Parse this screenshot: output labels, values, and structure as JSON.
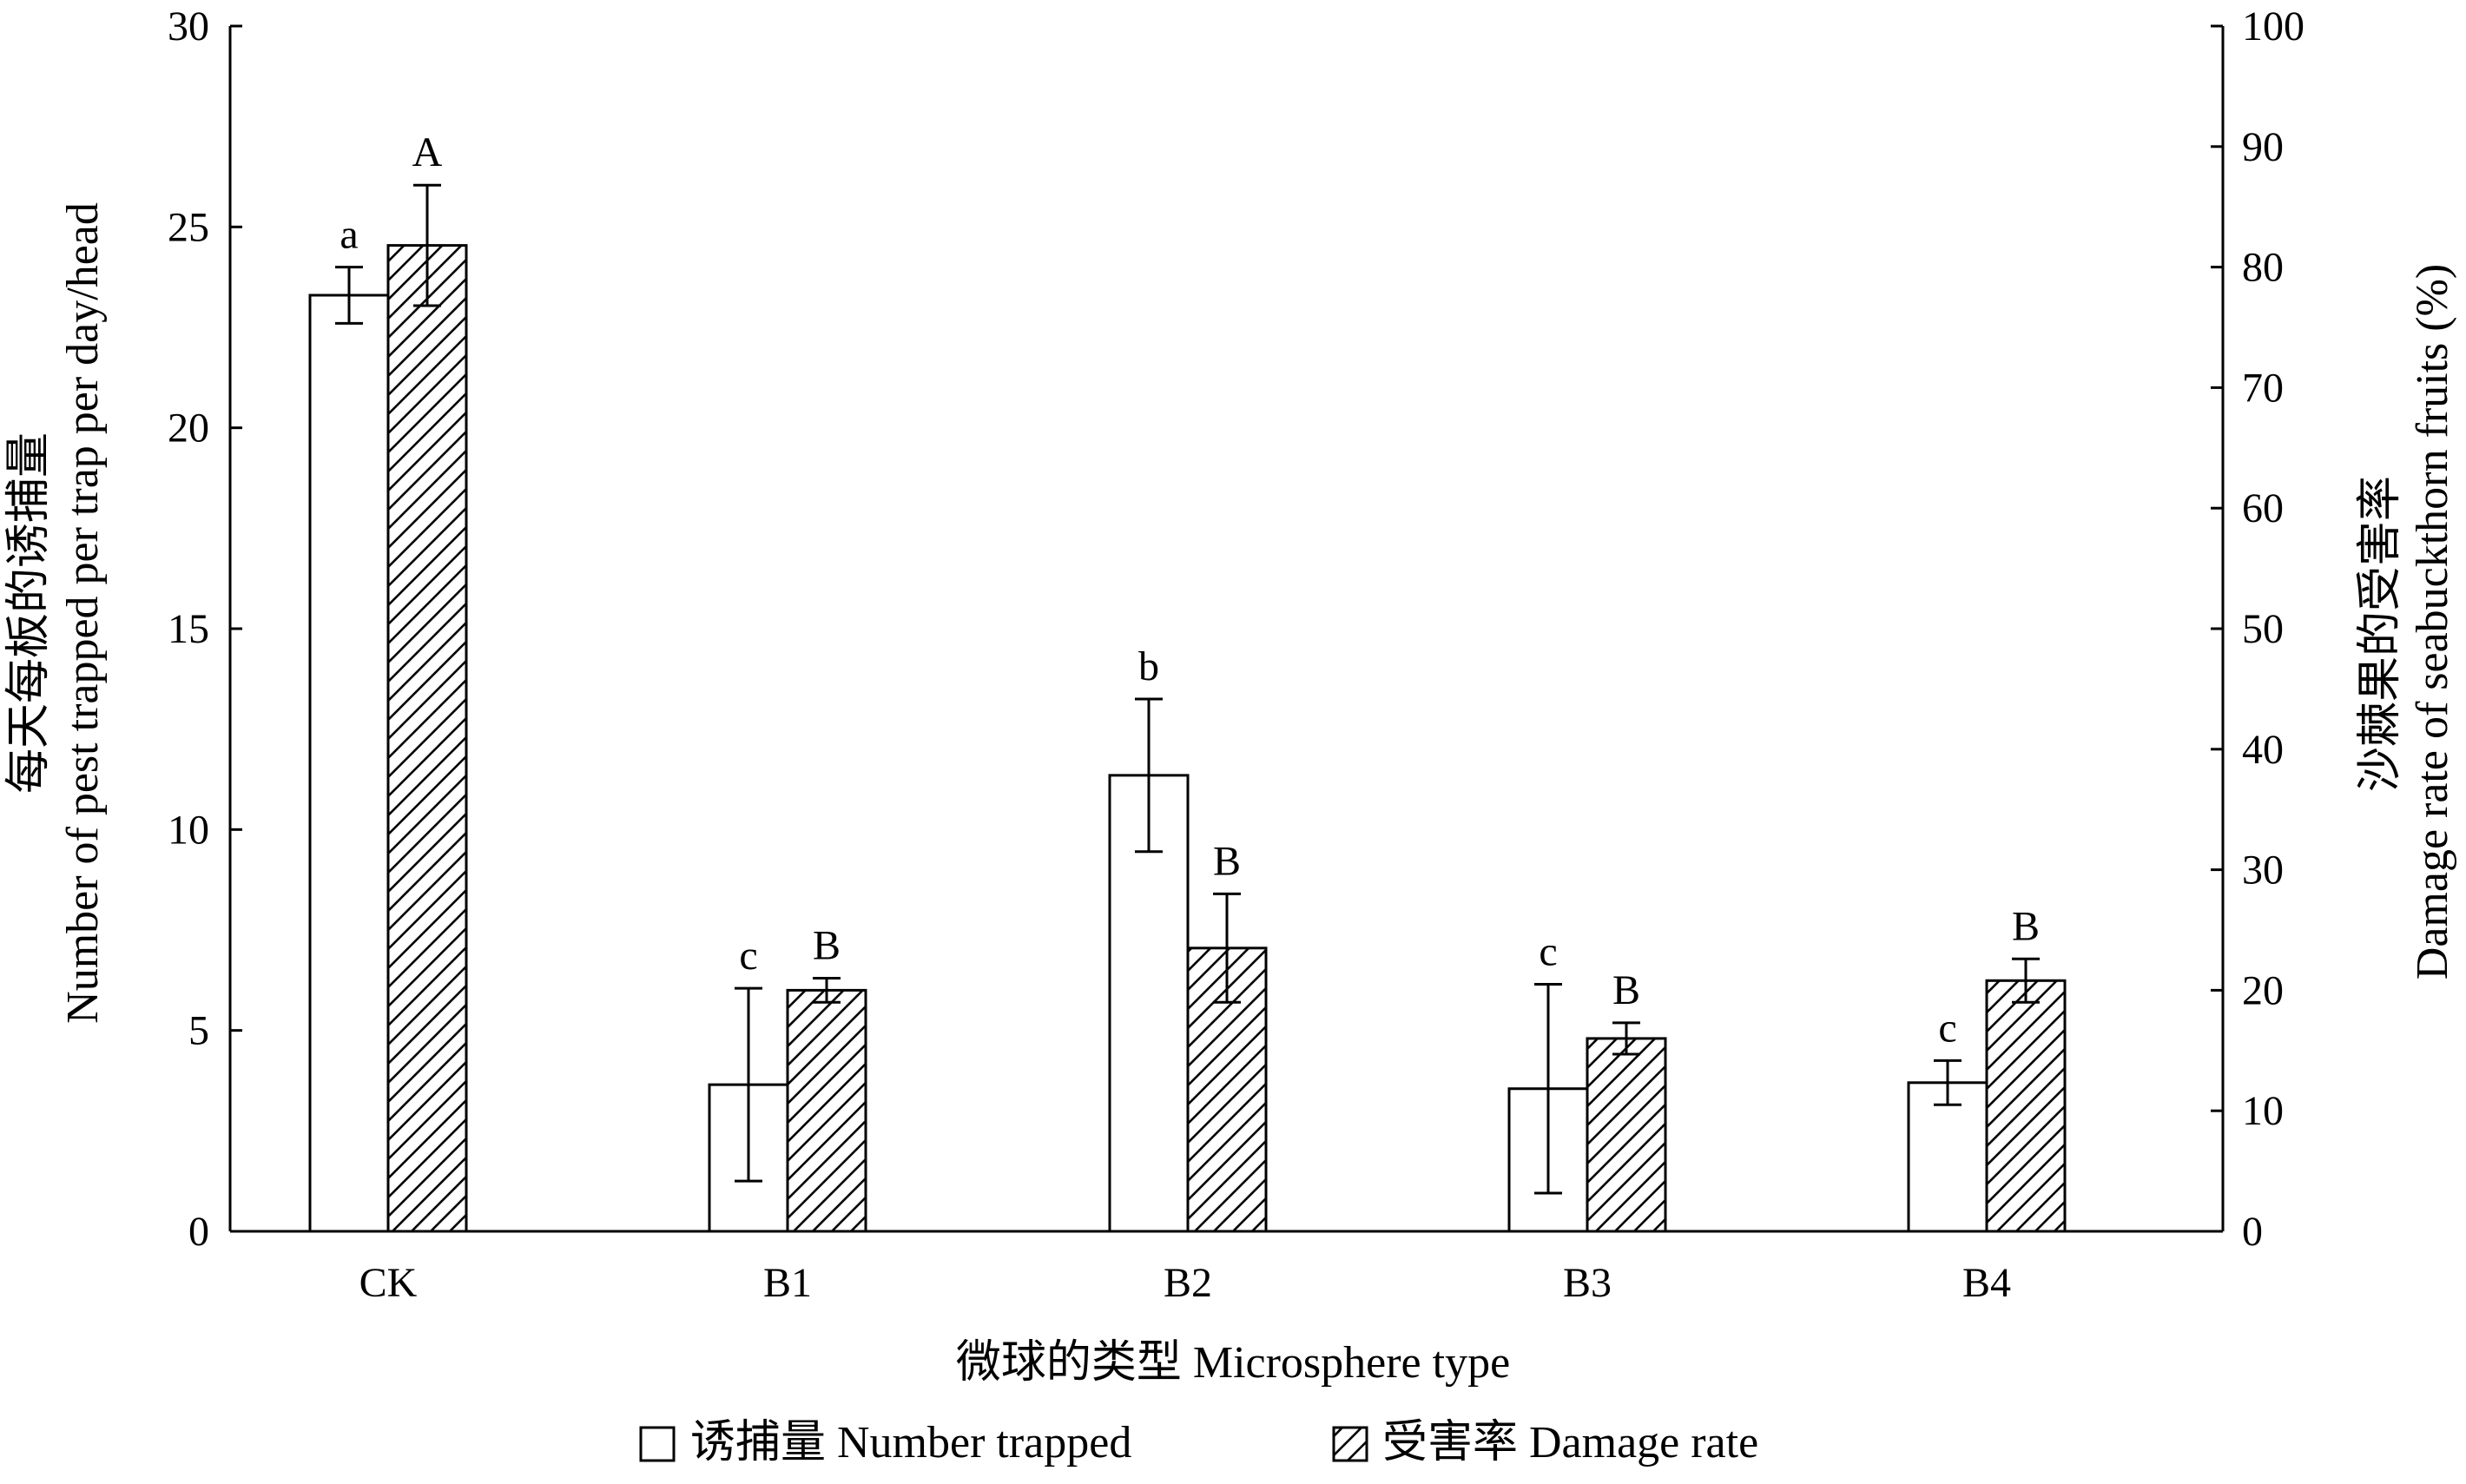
{
  "chart_data": {
    "type": "bar",
    "categories": [
      "CK",
      "B1",
      "B2",
      "B3",
      "B4"
    ],
    "xlabel": "微球的类型  Microsphere type",
    "ylabel_left": [
      "每天每板的诱捕量",
      "Number of pest trapped per trap per day/head"
    ],
    "ylabel_right": [
      "沙棘果的受害率",
      "Damage rate of seabuckthorn fruits (%)"
    ],
    "y_left": {
      "lim": [
        0,
        30
      ],
      "ticks": [
        0,
        5,
        10,
        15,
        20,
        25,
        30
      ]
    },
    "y_right": {
      "lim": [
        0,
        100
      ],
      "ticks": [
        0,
        10,
        20,
        30,
        40,
        50,
        60,
        70,
        80,
        90,
        100
      ]
    },
    "grid": false,
    "legend_position": "bottom",
    "series": [
      {
        "name": "诱捕量  Number trapped",
        "axis": "left",
        "pattern": "open",
        "values": [
          23.3,
          3.65,
          11.35,
          3.55,
          3.7
        ],
        "errors": [
          0.7,
          2.4,
          1.9,
          2.6,
          0.55
        ],
        "labels": [
          "a",
          "c",
          "b",
          "c",
          "c"
        ]
      },
      {
        "name": "受害率  Damage rate",
        "axis": "right",
        "pattern": "hatched",
        "values": [
          81.8,
          20.0,
          23.5,
          16.0,
          20.8
        ],
        "errors": [
          5.0,
          1.0,
          4.5,
          1.3,
          1.8
        ],
        "labels": [
          "A",
          "B",
          "B",
          "B",
          "B"
        ]
      }
    ]
  }
}
